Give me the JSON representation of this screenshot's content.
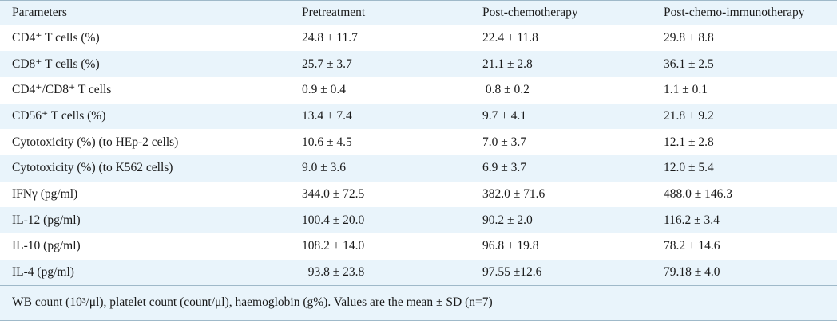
{
  "table": {
    "headers": [
      "Parameters",
      "Pretreatment",
      "Post-chemotherapy",
      "Post-chemo-immunotherapy"
    ],
    "rows": [
      [
        "CD4⁺ T cells (%)",
        "24.8 ± 11.7",
        "22.4 ± 11.8",
        "29.8 ± 8.8"
      ],
      [
        "CD8⁺ T cells (%)",
        "25.7 ± 3.7",
        "21.1 ± 2.8",
        "36.1 ± 2.5"
      ],
      [
        "CD4⁺/CD8⁺ T cells",
        "0.9 ± 0.4",
        " 0.8 ± 0.2",
        "1.1 ± 0.1"
      ],
      [
        "CD56⁺ T cells (%)",
        "13.4 ± 7.4",
        "9.7 ± 4.1",
        "21.8 ± 9.2"
      ],
      [
        "Cytotoxicity (%) (to HEp-2 cells)",
        "10.6 ± 4.5",
        "7.0 ± 3.7",
        "12.1 ± 2.8"
      ],
      [
        "Cytotoxicity (%) (to K562 cells)",
        "9.0 ± 3.6",
        "6.9 ± 3.7",
        "12.0 ± 5.4"
      ],
      [
        "IFNγ (pg/ml)",
        "344.0 ± 72.5",
        "382.0 ± 71.6",
        "488.0 ± 146.3"
      ],
      [
        "IL-12 (pg/ml)",
        "100.4 ± 20.0",
        "90.2 ± 2.0",
        "116.2 ± 3.4"
      ],
      [
        "IL-10 (pg/ml)",
        "108.2 ± 14.0",
        "96.8 ± 19.8",
        "78.2 ± 14.6"
      ],
      [
        "IL-4 (pg/ml)",
        "  93.8 ± 23.8",
        "97.55 ±12.6",
        "79.18 ± 4.0"
      ]
    ],
    "footnote": "WB count (10³/μl), platelet count (count/μl), haemoglobin (g%). Values are the mean ± SD (n=7)"
  }
}
